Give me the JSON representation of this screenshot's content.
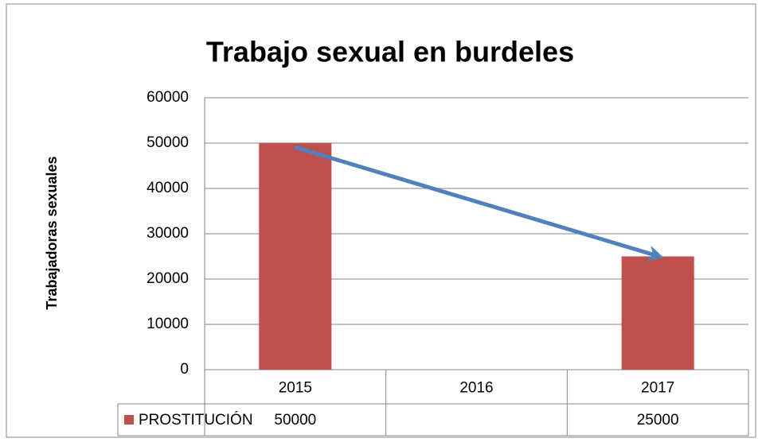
{
  "chart_data": {
    "type": "bar",
    "title": "Trabajo sexual en burdeles",
    "y_axis_label": "Trabajadoras sexuales",
    "categories": [
      "2015",
      "2016",
      "2017"
    ],
    "series": [
      {
        "name": "PROSTITUCIÓN",
        "color": "#c0504d",
        "values": [
          50000,
          null,
          25000
        ]
      }
    ],
    "ylim": [
      0,
      60000
    ],
    "yticks": [
      0,
      10000,
      20000,
      30000,
      40000,
      50000,
      60000
    ],
    "grid": true,
    "legend": "data-table"
  }
}
